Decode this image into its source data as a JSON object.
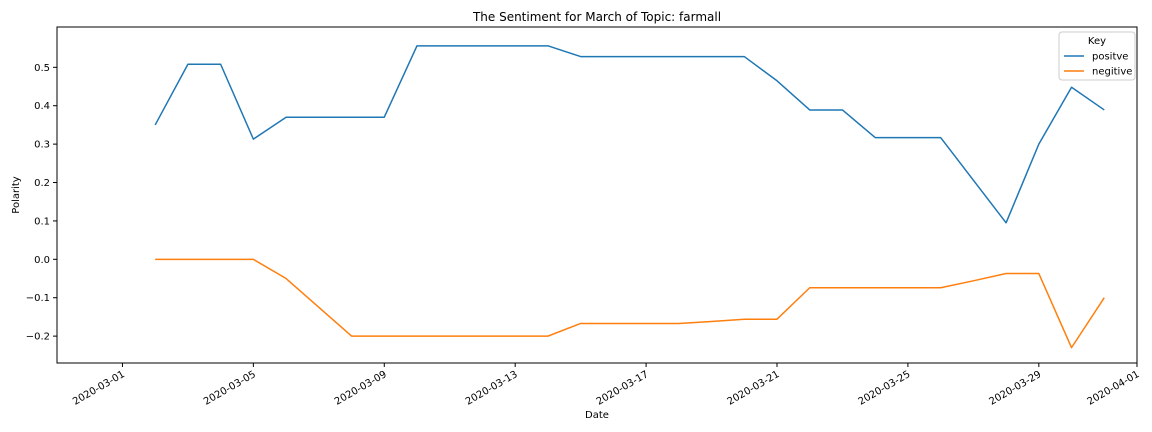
{
  "chart_data": {
    "type": "line",
    "title": "The Sentiment for March of Topic: farmall",
    "xlabel": "Date",
    "ylabel": "Polarity",
    "xlim": [
      "2020-02-28",
      "2020-04-01"
    ],
    "ylim": [
      -0.27,
      0.605
    ],
    "x_ticks": [
      "2020-03-01",
      "2020-03-05",
      "2020-03-09",
      "2020-03-13",
      "2020-03-17",
      "2020-03-21",
      "2020-03-25",
      "2020-03-29",
      "2020-04-01"
    ],
    "y_ticks": [
      0.5,
      0.4,
      0.3,
      0.2,
      0.1,
      0.0,
      -0.1,
      -0.2
    ],
    "y_tick_labels": [
      "0.5",
      "0.4",
      "0.3",
      "0.2",
      "0.1",
      "0.0",
      "−0.1",
      "−0.2"
    ],
    "grid": false,
    "legend": {
      "title": "Key",
      "placement": "top-right"
    },
    "x": [
      "2020-03-02",
      "2020-03-03",
      "2020-03-04",
      "2020-03-05",
      "2020-03-06",
      "2020-03-07",
      "2020-03-08",
      "2020-03-09",
      "2020-03-10",
      "2020-03-11",
      "2020-03-12",
      "2020-03-13",
      "2020-03-14",
      "2020-03-15",
      "2020-03-16",
      "2020-03-17",
      "2020-03-18",
      "2020-03-19",
      "2020-03-20",
      "2020-03-21",
      "2020-03-22",
      "2020-03-23",
      "2020-03-24",
      "2020-03-25",
      "2020-03-26",
      "2020-03-27",
      "2020-03-28",
      "2020-03-29",
      "2020-03-30",
      "2020-03-31"
    ],
    "series": [
      {
        "name": "positve",
        "color": "#1f77b4",
        "values": [
          0.35,
          0.508,
          0.508,
          0.313,
          0.37,
          0.37,
          0.37,
          0.37,
          0.556,
          0.556,
          0.556,
          0.556,
          0.556,
          0.528,
          0.528,
          0.528,
          0.528,
          0.528,
          0.528,
          0.465,
          0.389,
          0.389,
          0.317,
          0.317,
          0.317,
          0.206,
          0.095,
          0.3,
          0.448,
          0.389
        ]
      },
      {
        "name": "negitive",
        "color": "#ff7f0e",
        "values": [
          0.0,
          0.0,
          0.0,
          0.0,
          -0.05,
          -0.125,
          -0.2,
          -0.2,
          -0.2,
          -0.2,
          -0.2,
          -0.2,
          -0.2,
          -0.167,
          -0.167,
          -0.167,
          -0.167,
          -0.162,
          -0.156,
          -0.156,
          -0.074,
          -0.074,
          -0.074,
          -0.074,
          -0.074,
          -0.056,
          -0.037,
          -0.037,
          -0.23,
          -0.1
        ]
      }
    ]
  }
}
